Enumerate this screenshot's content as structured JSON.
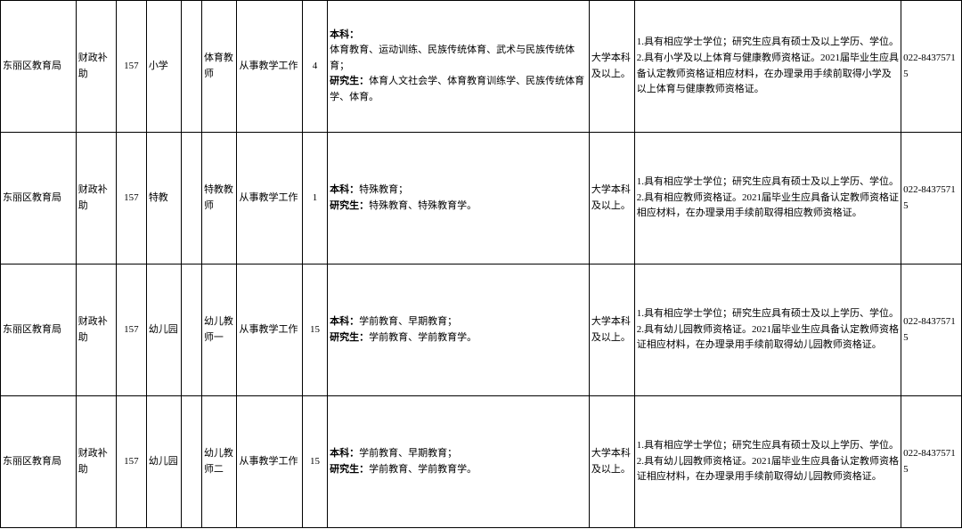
{
  "table": {
    "border_color": "#000000",
    "background": "#ffffff",
    "font_size": 11,
    "rows": [
      {
        "department": "东丽区教育局",
        "funding": "财政补助",
        "code": "157",
        "level": "小学",
        "position": "体育教师",
        "duty": "从事教学工作",
        "count": "4",
        "major_prefix": "本科：",
        "major_bk": "体育教育、运动训练、民族传统体育、武术与民族传统体育；",
        "major_grad_prefix": "研究生：",
        "major_grad": "体育人文社会学、体育教育训练学、民族传统体育学、体育。",
        "education": "大学本科及以上。",
        "requirement": "1.具有相应学士学位；研究生应具有硕士及以上学历、学位。2.具有小学及以上体育与健康教师资格证。2021届毕业生应具备认定教师资格证相应材料，在办理录用手续前取得小学及以上体育与健康教师资格证。",
        "tel": "022-84375715"
      },
      {
        "department": "东丽区教育局",
        "funding": "财政补助",
        "code": "157",
        "level": "特教",
        "position": "特教教师",
        "duty": "从事教学工作",
        "count": "1",
        "major_prefix": "本科：",
        "major_bk": "特殊教育；",
        "major_grad_prefix": "研究生：",
        "major_grad": "特殊教育、特殊教育学。",
        "education": "大学本科及以上。",
        "requirement": "1.具有相应学士学位；研究生应具有硕士及以上学历、学位。2.具有相应教师资格证。2021届毕业生应具备认定教师资格证相应材料，在办理录用手续前取得相应教师资格证。",
        "tel": "022-84375715"
      },
      {
        "department": "东丽区教育局",
        "funding": "财政补助",
        "code": "157",
        "level": "幼儿园",
        "position": "幼儿教师一",
        "duty": "从事教学工作",
        "count": "15",
        "major_prefix": "本科：",
        "major_bk": "学前教育、早期教育；",
        "major_grad_prefix": "研究生：",
        "major_grad": "学前教育、学前教育学。",
        "education": "大学本科及以上。",
        "requirement": "1.具有相应学士学位；研究生应具有硕士及以上学历、学位。2.具有幼儿园教师资格证。2021届毕业生应具备认定教师资格证相应材料，在办理录用手续前取得幼儿园教师资格证。",
        "tel": "022-84375715"
      },
      {
        "department": "东丽区教育局",
        "funding": "财政补助",
        "code": "157",
        "level": "幼儿园",
        "position": "幼儿教师二",
        "duty": "从事教学工作",
        "count": "15",
        "major_prefix": "本科：",
        "major_bk": "学前教育、早期教育；",
        "major_grad_prefix": "研究生：",
        "major_grad": "学前教育、学前教育学。",
        "education": "大学本科及以上。",
        "requirement": "1.具有相应学士学位；研究生应具有硕士及以上学历、学位。2.具有幼儿园教师资格证。2021届毕业生应具备认定教师资格证相应材料，在办理录用手续前取得幼儿园教师资格证。",
        "tel": "022-84375715"
      }
    ]
  }
}
